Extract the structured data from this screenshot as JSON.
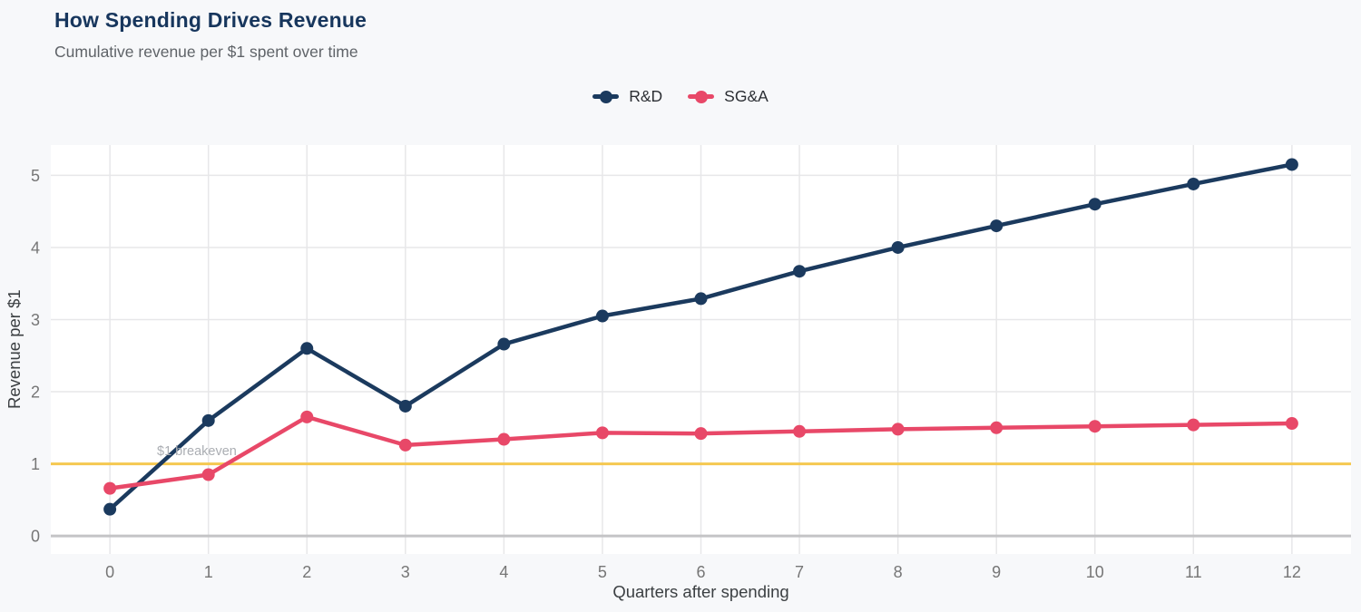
{
  "page": {
    "title": "How Spending Drives Revenue",
    "subtitle": "Cumulative revenue per $1 spent over time"
  },
  "colors": {
    "background": "#f7f8fa",
    "plot_background": "#ffffff",
    "title": "#17365d",
    "subtitle": "#5f6368",
    "grid": "#e7e7e9",
    "zero_line": "#c4c4c6",
    "tick_label": "#767676",
    "axis_label": "#3c4043",
    "annotation": "#abaeb3",
    "breakeven_line": "#f5c850",
    "rd_series": "#1b3a5e",
    "sga_series": "#e84868"
  },
  "chart_data": {
    "type": "line",
    "title": "How Spending Drives Revenue",
    "subtitle": "Cumulative revenue per $1 spent over time",
    "xlabel": "Quarters after spending",
    "ylabel": "Revenue per $1",
    "x": [
      0,
      1,
      2,
      3,
      4,
      5,
      6,
      7,
      8,
      9,
      10,
      11,
      12
    ],
    "series": [
      {
        "name": "R&D",
        "color": "#1b3a5e",
        "values": [
          0.37,
          1.6,
          2.6,
          1.8,
          2.66,
          3.05,
          3.29,
          3.67,
          4.0,
          4.3,
          4.6,
          4.88,
          5.15
        ]
      },
      {
        "name": "SG&A",
        "color": "#e84868",
        "values": [
          0.66,
          0.85,
          1.65,
          1.26,
          1.34,
          1.43,
          1.42,
          1.45,
          1.48,
          1.5,
          1.52,
          1.54,
          1.56
        ]
      }
    ],
    "x_ticks": [
      0,
      1,
      2,
      3,
      4,
      5,
      6,
      7,
      8,
      9,
      10,
      11,
      12
    ],
    "y_ticks": [
      0,
      1,
      2,
      3,
      4,
      5
    ],
    "xlim": [
      -0.6,
      12.6
    ],
    "ylim": [
      -0.25,
      5.42
    ],
    "grid": true,
    "legend_position": "top-center",
    "reference_line": {
      "y": 1,
      "label": "$1 breakeven"
    }
  }
}
